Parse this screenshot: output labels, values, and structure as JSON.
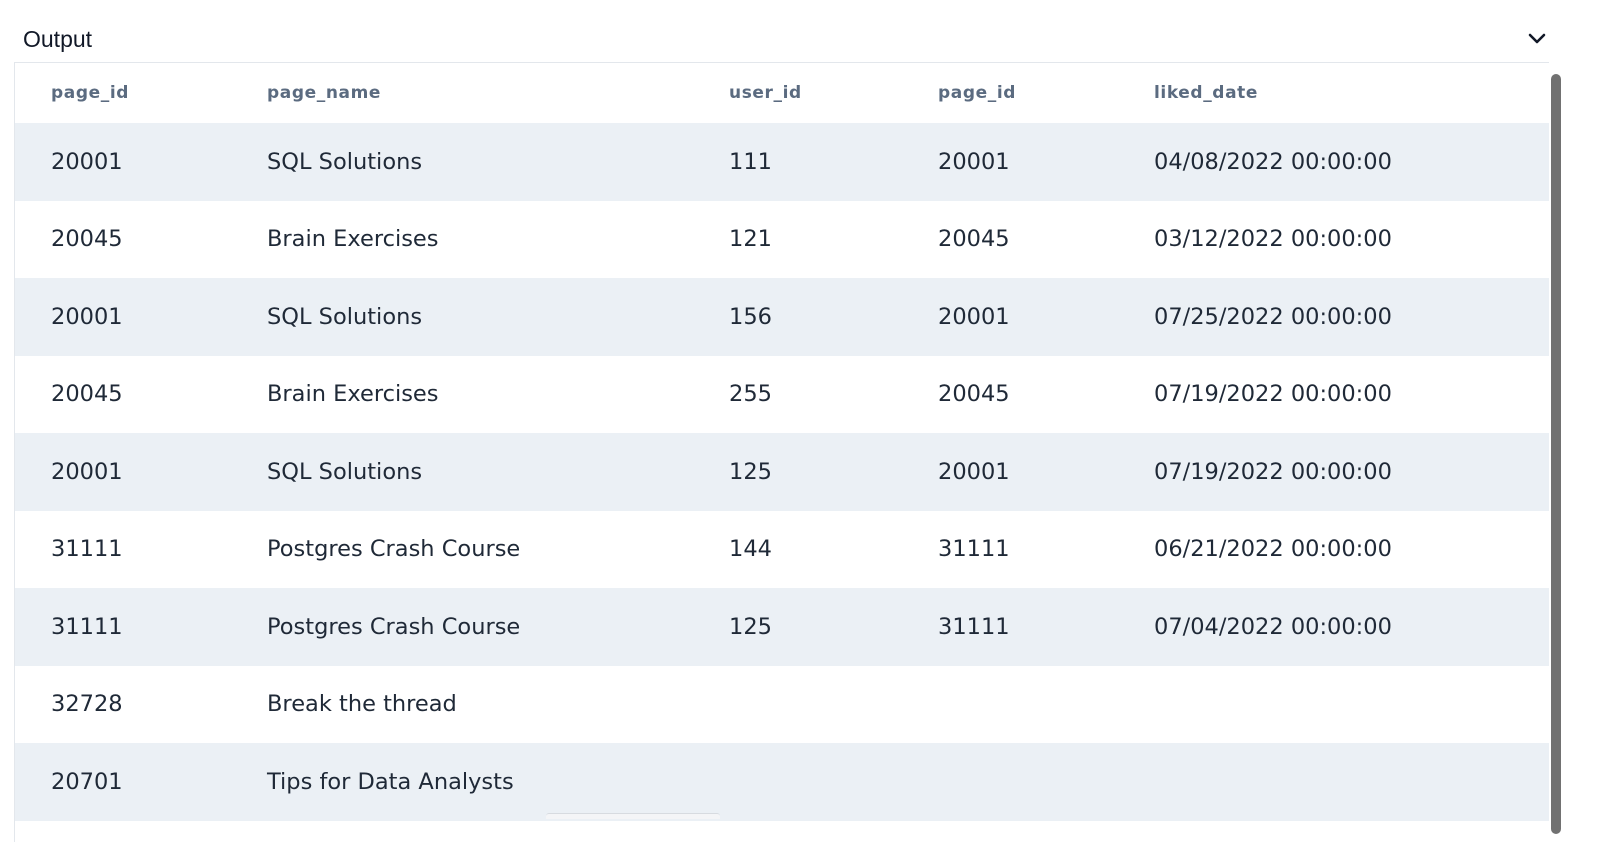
{
  "panel": {
    "title": "Output"
  },
  "icons": {
    "collapse": "chevron-down-icon"
  },
  "table": {
    "columns": [
      "page_id",
      "page_name",
      "user_id",
      "page_id",
      "liked_date"
    ],
    "rows": [
      [
        "20001",
        "SQL Solutions",
        "111",
        "20001",
        "04/08/2022 00:00:00"
      ],
      [
        "20045",
        "Brain Exercises",
        "121",
        "20045",
        "03/12/2022 00:00:00"
      ],
      [
        "20001",
        "SQL Solutions",
        "156",
        "20001",
        "07/25/2022 00:00:00"
      ],
      [
        "20045",
        "Brain Exercises",
        "255",
        "20045",
        "07/19/2022 00:00:00"
      ],
      [
        "20001",
        "SQL Solutions",
        "125",
        "20001",
        "07/19/2022 00:00:00"
      ],
      [
        "31111",
        "Postgres Crash Course",
        "144",
        "31111",
        "06/21/2022 00:00:00"
      ],
      [
        "31111",
        "Postgres Crash Course",
        "125",
        "31111",
        "07/04/2022 00:00:00"
      ],
      [
        "32728",
        "Break the thread",
        "",
        "",
        ""
      ],
      [
        "20701",
        "Tips for Data Analysts",
        "",
        "",
        ""
      ]
    ]
  },
  "colors": {
    "row_stripe": "#ebf0f5",
    "header_text": "#5b6b80",
    "scrollbar_thumb": "#717171"
  }
}
